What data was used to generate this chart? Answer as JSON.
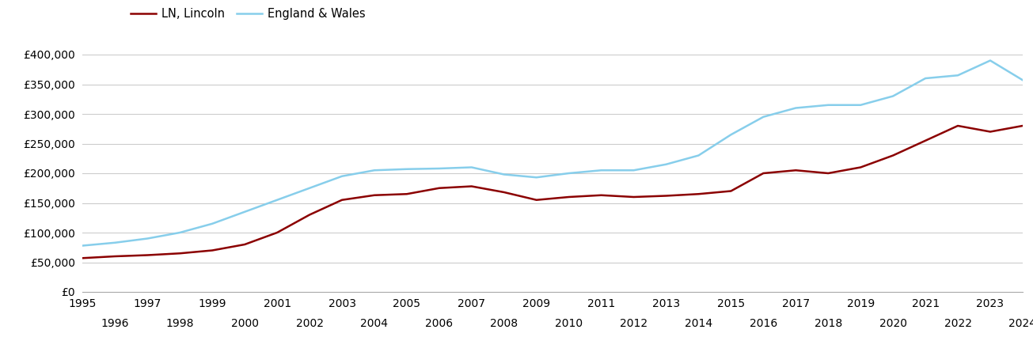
{
  "years": [
    1995,
    1996,
    1997,
    1998,
    1999,
    2000,
    2001,
    2002,
    2003,
    2004,
    2005,
    2006,
    2007,
    2008,
    2009,
    2010,
    2011,
    2012,
    2013,
    2014,
    2015,
    2016,
    2017,
    2018,
    2019,
    2020,
    2021,
    2022,
    2023,
    2024
  ],
  "lincoln": [
    57000,
    60000,
    62000,
    65000,
    70000,
    80000,
    100000,
    130000,
    155000,
    163000,
    165000,
    175000,
    178000,
    168000,
    155000,
    160000,
    163000,
    160000,
    162000,
    165000,
    170000,
    200000,
    205000,
    200000,
    210000,
    230000,
    255000,
    280000,
    270000,
    280000
  ],
  "england_wales": [
    78000,
    83000,
    90000,
    100000,
    115000,
    135000,
    155000,
    175000,
    195000,
    205000,
    207000,
    208000,
    210000,
    198000,
    193000,
    200000,
    205000,
    205000,
    215000,
    230000,
    265000,
    295000,
    310000,
    315000,
    315000,
    330000,
    360000,
    365000,
    390000,
    357000
  ],
  "lincoln_color": "#8B0000",
  "ew_color": "#87CEEB",
  "lincoln_label": "LN, Lincoln",
  "ew_label": "England & Wales",
  "ylim": [
    0,
    420000
  ],
  "yticks": [
    0,
    50000,
    100000,
    150000,
    200000,
    250000,
    300000,
    350000,
    400000
  ],
  "background_color": "#ffffff",
  "grid_color": "#cccccc",
  "line_width": 1.8,
  "legend_fontsize": 10.5,
  "tick_fontsize": 10
}
